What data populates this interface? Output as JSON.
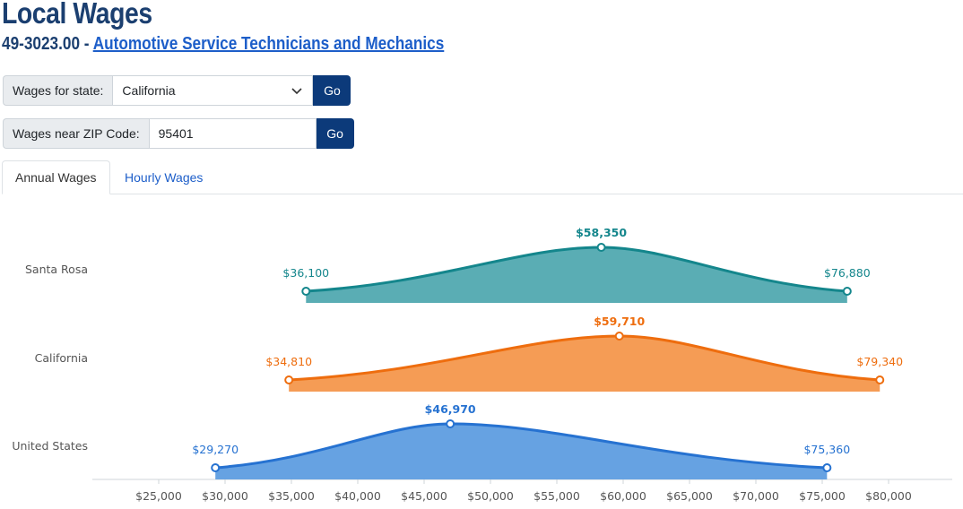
{
  "header": {
    "title": "Local Wages",
    "code": "49-3023.00 -",
    "occupation_link": "Automotive Service Technicians and Mechanics"
  },
  "state_form": {
    "label": "Wages for state:",
    "value": "California",
    "button": "Go"
  },
  "zip_form": {
    "label": "Wages near ZIP Code:",
    "value": "95401",
    "button": "Go"
  },
  "tabs": [
    {
      "label": "Annual Wages",
      "active": true
    },
    {
      "label": "Hourly Wages",
      "active": false
    }
  ],
  "colors": {
    "santa_rosa": "#14868c",
    "california": "#ee6d0e",
    "united_states": "#2672d1"
  },
  "chart_data": {
    "type": "area",
    "x_ticks": [
      "$25,000",
      "$30,000",
      "$35,000",
      "$40,000",
      "$45,000",
      "$50,000",
      "$55,000",
      "$60,000",
      "$65,000",
      "$70,000",
      "$75,000",
      "$80,000"
    ],
    "xlim": [
      22000,
      83000
    ],
    "series": [
      {
        "name": "Santa Rosa",
        "low": 36100,
        "median": 58350,
        "high": 76880,
        "low_label": "$36,100",
        "median_label": "$58,350",
        "high_label": "$76,880",
        "color": "#14868c",
        "fill": "#5aadb4"
      },
      {
        "name": "California",
        "low": 34810,
        "median": 59710,
        "high": 79340,
        "low_label": "$34,810",
        "median_label": "$59,710",
        "high_label": "$79,340",
        "color": "#ee6d0e",
        "fill": "#f59c55"
      },
      {
        "name": "United States",
        "low": 29270,
        "median": 46970,
        "high": 75360,
        "low_label": "$29,270",
        "median_label": "$46,970",
        "high_label": "$75,360",
        "color": "#2672d1",
        "fill": "#66a2e2"
      }
    ]
  }
}
